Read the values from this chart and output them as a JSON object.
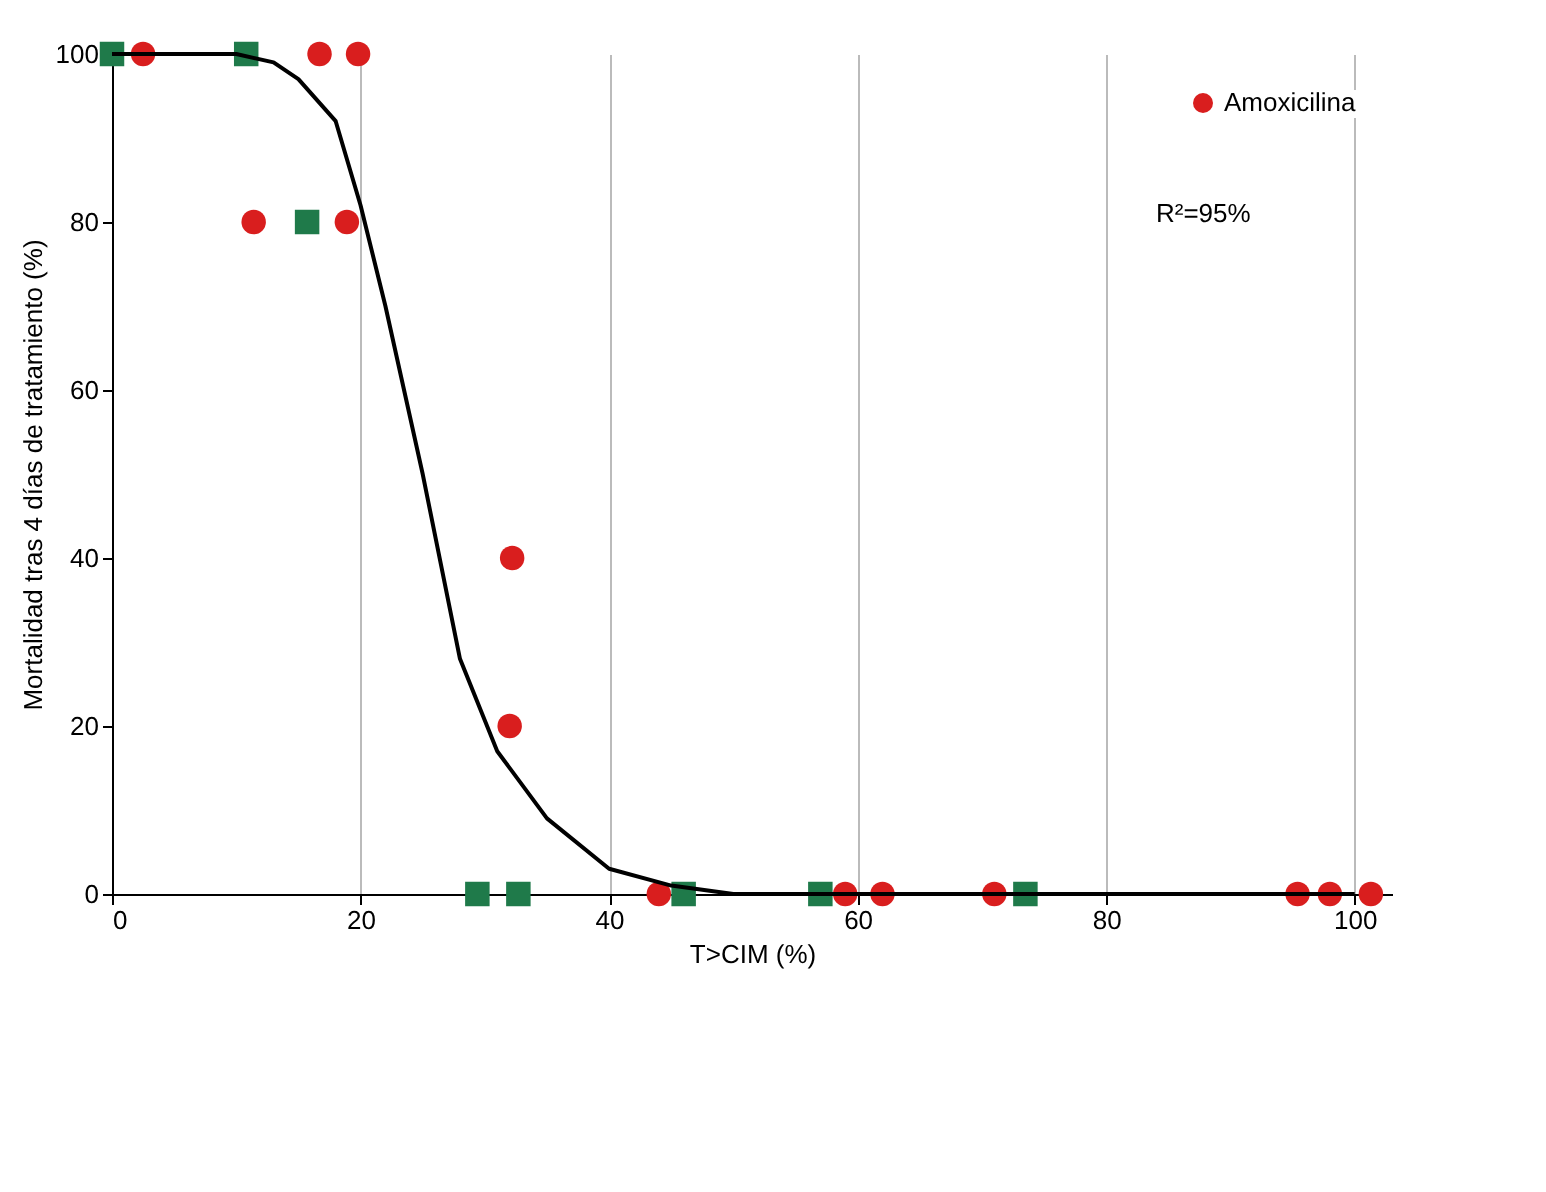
{
  "chart_data": {
    "type": "scatter",
    "xlabel": "T>CIM (%)",
    "ylabel": "Mortalidad tras 4 días de tratamiento (%)",
    "xlim": [
      0,
      103
    ],
    "xticks": [
      0,
      20,
      40,
      60,
      80,
      100
    ],
    "ylim": [
      0,
      100
    ],
    "yticks": [
      0,
      20,
      40,
      60,
      80,
      100
    ],
    "grid": "x",
    "legend": "top right",
    "annotations": [
      "R²=95%"
    ],
    "series": [
      {
        "name": "Amoxicilina",
        "color": "#d91e1e",
        "marker": "circle",
        "x": [
          2.5,
          16.7,
          19.8,
          11.4,
          18.9,
          32.2,
          32,
          44,
          59,
          62,
          71,
          95.4,
          98,
          101.3
        ],
        "values": [
          100,
          100,
          100,
          80,
          80,
          40,
          20,
          0,
          0,
          0,
          0,
          0,
          0,
          0
        ]
      },
      {
        "color": "#1f7a4a",
        "marker": "square",
        "x": [
          0,
          10.8,
          15.7,
          29.4,
          32.7,
          46,
          57,
          73.5
        ],
        "values": [
          100,
          100,
          80,
          0,
          0,
          0,
          0,
          0
        ]
      },
      {
        "type": "line",
        "color": "#000000",
        "marker": "none",
        "x": [
          0,
          10,
          13,
          15,
          18,
          20,
          22,
          25,
          28,
          31,
          35,
          40,
          45,
          50,
          100
        ],
        "values": [
          100,
          100,
          99,
          97,
          92,
          82,
          70,
          50,
          28,
          17,
          9,
          3,
          1,
          0,
          0
        ]
      }
    ]
  }
}
